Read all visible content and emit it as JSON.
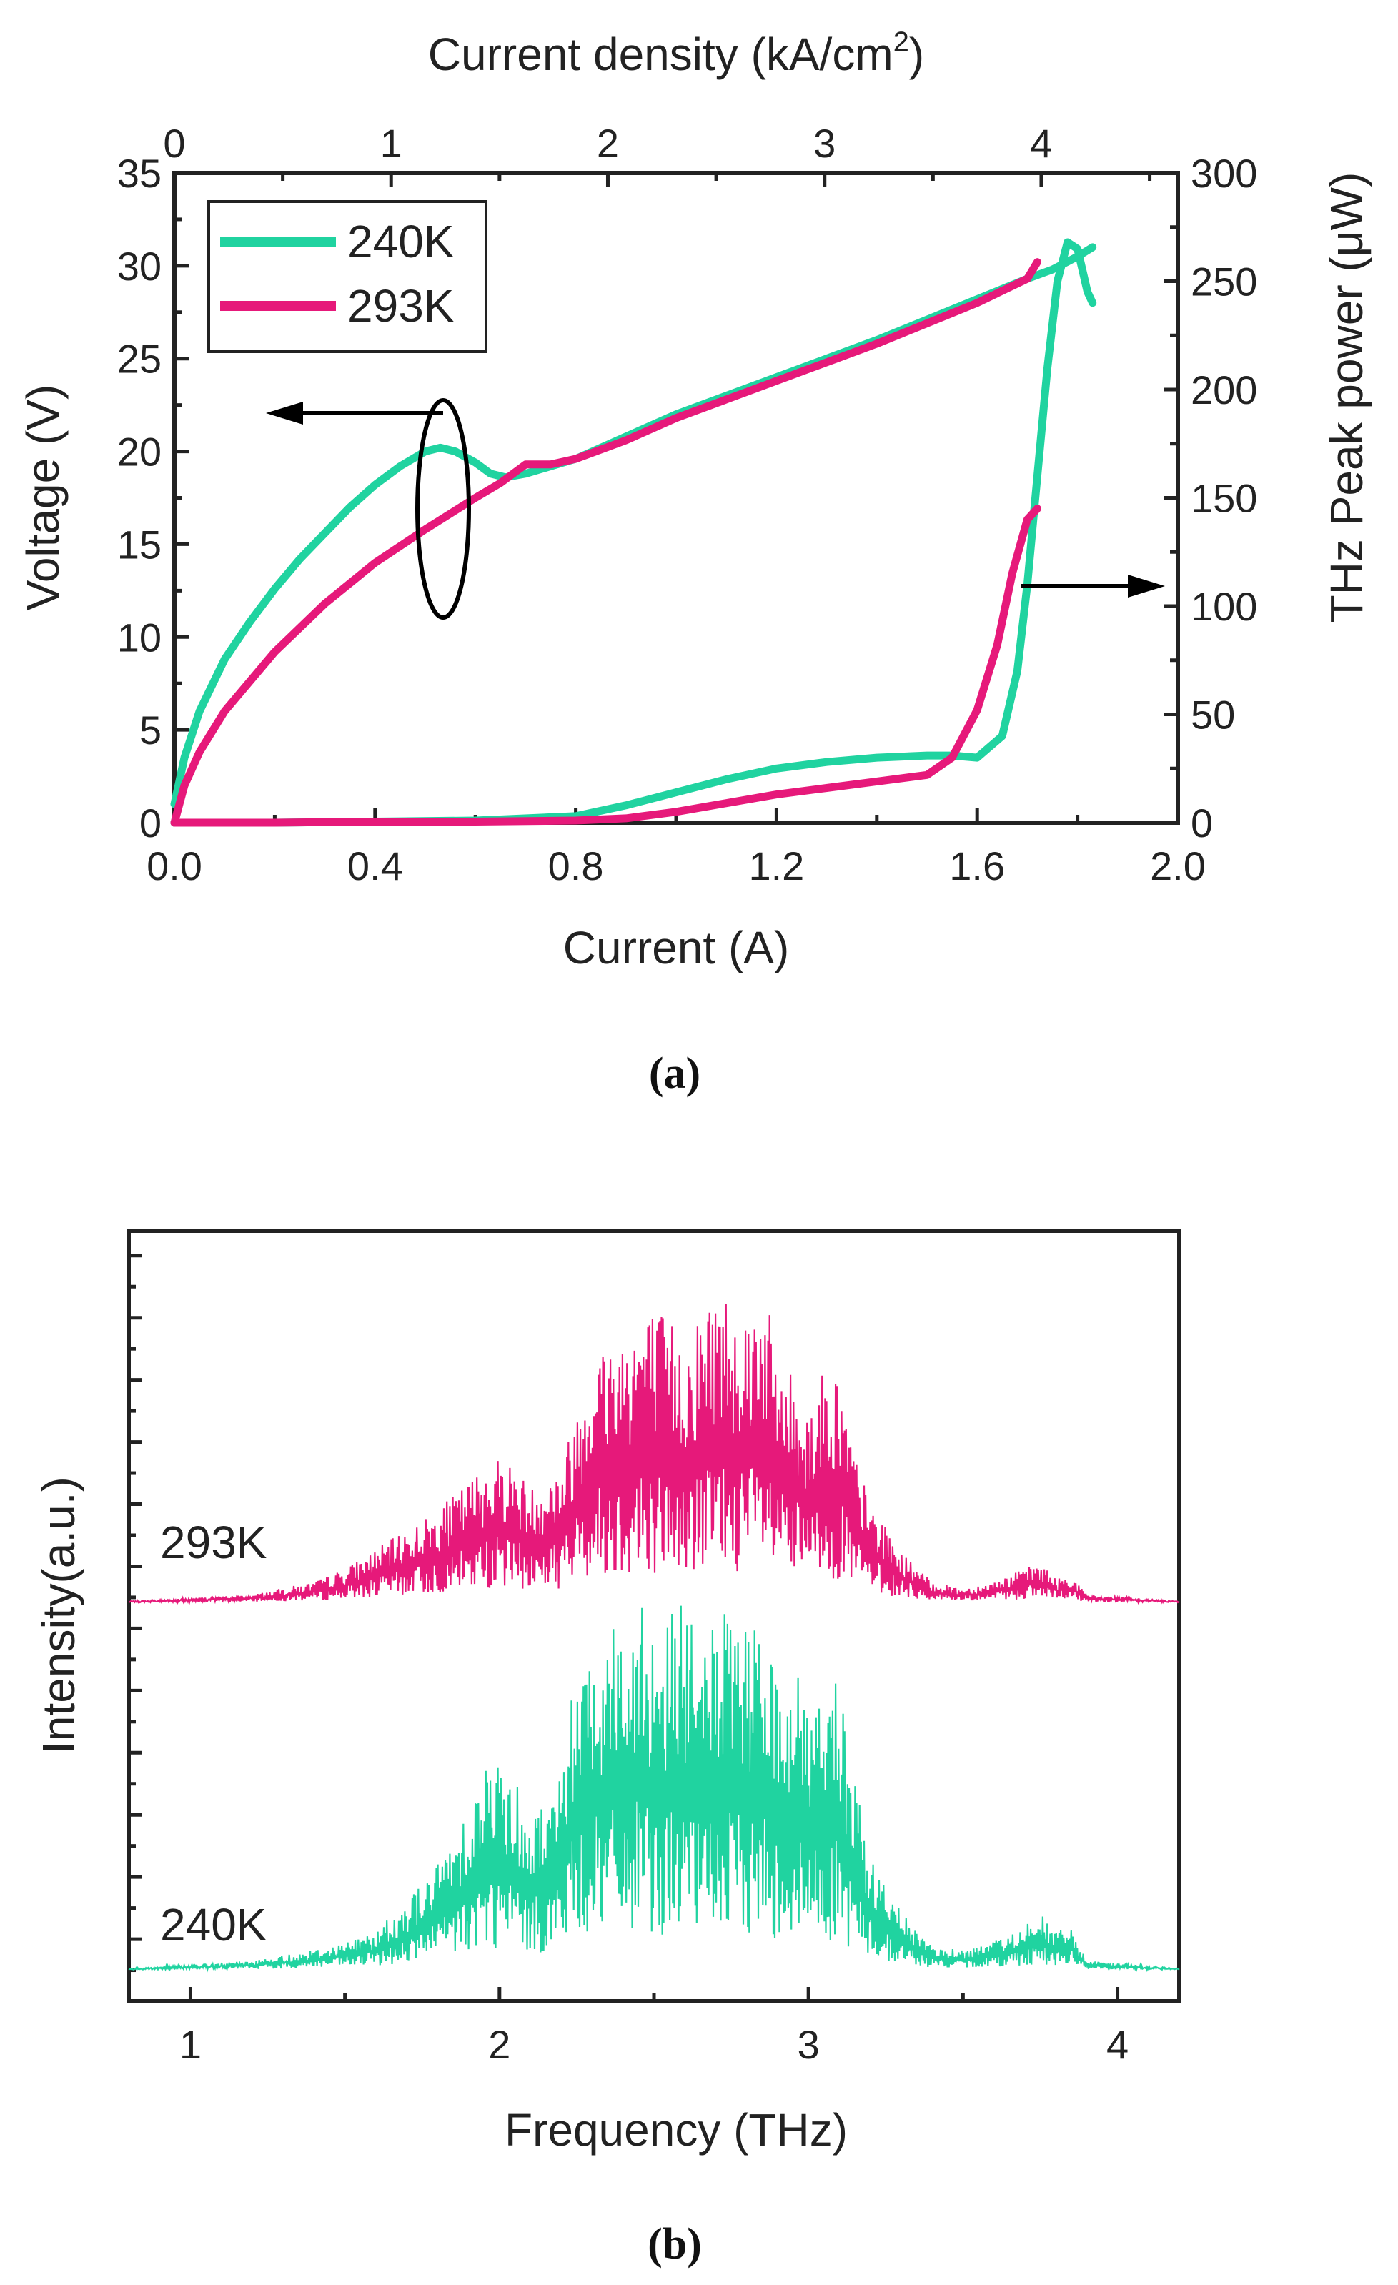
{
  "colors": {
    "green": "#20D3A0",
    "pink": "#E6197A",
    "axis": "#222222"
  },
  "chart_data": [
    {
      "type": "line",
      "panel": "(a)",
      "caption": "(a)",
      "title": "",
      "xlabel": "Current (A)",
      "x2label_prefix": "Current density (kA/cm",
      "x2label_sup": "2",
      "x2label_suffix": ")",
      "ylabel": "Voltage (V)",
      "y2label": "THz Peak power (μW)",
      "xlim": [
        0.0,
        2.0
      ],
      "ylim": [
        0,
        35
      ],
      "y2lim": [
        0,
        300
      ],
      "x2lim": [
        0,
        4.63
      ],
      "xticks": [
        "0.0",
        "0.4",
        "0.8",
        "1.2",
        "1.6",
        "2.0"
      ],
      "yticks": [
        "0",
        "5",
        "10",
        "15",
        "20",
        "25",
        "30",
        "35"
      ],
      "y2ticks": [
        "0",
        "50",
        "100",
        "150",
        "200",
        "250",
        "300"
      ],
      "x2ticks": [
        "0",
        "1",
        "2",
        "3",
        "4"
      ],
      "legend": {
        "position": "top-left",
        "entries": [
          "240K",
          "293K"
        ]
      },
      "annotations": [
        "ellipse around voltage curves with arrow pointing to left axis",
        "arrow from power curves pointing to right axis"
      ],
      "series": [
        {
          "name": "240K",
          "kind": "voltage",
          "axis": "left",
          "color": "green",
          "x": [
            0.0,
            0.02,
            0.05,
            0.1,
            0.15,
            0.2,
            0.25,
            0.3,
            0.35,
            0.4,
            0.45,
            0.5,
            0.53,
            0.56,
            0.6,
            0.63,
            0.66,
            0.7,
            0.8,
            0.9,
            1.0,
            1.1,
            1.2,
            1.3,
            1.4,
            1.5,
            1.6,
            1.7,
            1.75,
            1.8,
            1.83
          ],
          "y": [
            1.0,
            3.5,
            6.0,
            8.8,
            10.8,
            12.6,
            14.2,
            15.6,
            17.0,
            18.2,
            19.2,
            20.0,
            20.2,
            20.0,
            19.4,
            18.8,
            18.6,
            18.8,
            19.6,
            20.8,
            22.0,
            23.0,
            24.0,
            25.0,
            26.0,
            27.1,
            28.2,
            29.3,
            29.8,
            30.5,
            31.0
          ]
        },
        {
          "name": "293K",
          "kind": "voltage",
          "axis": "left",
          "color": "pink",
          "x": [
            0.0,
            0.02,
            0.05,
            0.1,
            0.2,
            0.3,
            0.4,
            0.5,
            0.6,
            0.65,
            0.7,
            0.75,
            0.8,
            0.9,
            1.0,
            1.1,
            1.2,
            1.3,
            1.4,
            1.5,
            1.6,
            1.7,
            1.72
          ],
          "y": [
            0.0,
            2.0,
            3.8,
            6.0,
            9.2,
            11.8,
            14.0,
            15.8,
            17.5,
            18.3,
            19.3,
            19.3,
            19.6,
            20.6,
            21.8,
            22.8,
            23.8,
            24.8,
            25.8,
            26.9,
            28.0,
            29.3,
            30.2
          ]
        },
        {
          "name": "240K",
          "kind": "power",
          "axis": "right",
          "color": "green",
          "x": [
            0.0,
            0.2,
            0.4,
            0.6,
            0.8,
            0.9,
            1.0,
            1.1,
            1.2,
            1.3,
            1.4,
            1.5,
            1.55,
            1.6,
            1.65,
            1.68,
            1.7,
            1.72,
            1.74,
            1.76,
            1.78,
            1.8,
            1.82,
            1.83
          ],
          "y": [
            0,
            0,
            0.5,
            1,
            3,
            8,
            14,
            20,
            25,
            28,
            30,
            31,
            31,
            30,
            40,
            70,
            110,
            160,
            210,
            250,
            268,
            265,
            245,
            240
          ]
        },
        {
          "name": "293K",
          "kind": "power",
          "axis": "right",
          "color": "pink",
          "x": [
            0.0,
            0.2,
            0.4,
            0.6,
            0.8,
            0.9,
            1.0,
            1.1,
            1.2,
            1.3,
            1.4,
            1.5,
            1.55,
            1.6,
            1.64,
            1.67,
            1.7,
            1.72
          ],
          "y": [
            0,
            0,
            0.5,
            0.5,
            1,
            2,
            5,
            9,
            13,
            16,
            19,
            22,
            30,
            52,
            82,
            115,
            140,
            145
          ]
        }
      ]
    },
    {
      "type": "line",
      "panel": "(b)",
      "caption": "(b)",
      "title": "",
      "xlabel": "Frequency (THz)",
      "ylabel": "Intensity(a.u.)",
      "xlim": [
        0.8,
        4.2
      ],
      "xticks": [
        "1",
        "2",
        "3",
        "4"
      ],
      "yunits": "arbitrary, normalized 0-1 per spectrum",
      "spectra": [
        {
          "name": "293K",
          "label": "293K",
          "color": "pink",
          "envelope_x": [
            0.8,
            1.2,
            1.4,
            1.5,
            1.6,
            1.7,
            1.8,
            1.9,
            1.95,
            2.0,
            2.05,
            2.1,
            2.2,
            2.25,
            2.3,
            2.4,
            2.45,
            2.5,
            2.55,
            2.6,
            2.65,
            2.7,
            2.75,
            2.8,
            2.85,
            2.9,
            2.95,
            3.0,
            3.05,
            3.1,
            3.15,
            3.2,
            3.3,
            3.4,
            3.5,
            3.6,
            3.7,
            3.75,
            3.8,
            3.85,
            3.9,
            4.2
          ],
          "envelope_y": [
            0.0,
            0.02,
            0.06,
            0.1,
            0.16,
            0.22,
            0.28,
            0.37,
            0.42,
            0.45,
            0.42,
            0.35,
            0.42,
            0.6,
            0.78,
            0.85,
            0.9,
            0.9,
            0.88,
            0.8,
            0.9,
            0.98,
            0.95,
            0.9,
            1.0,
            0.75,
            0.7,
            0.6,
            0.72,
            0.7,
            0.45,
            0.3,
            0.15,
            0.06,
            0.04,
            0.06,
            0.1,
            0.12,
            0.07,
            0.08,
            0.02,
            0.0
          ]
        },
        {
          "name": "240K",
          "label": "240K",
          "color": "green",
          "envelope_x": [
            0.8,
            1.2,
            1.4,
            1.5,
            1.6,
            1.7,
            1.8,
            1.9,
            1.95,
            2.0,
            2.05,
            2.1,
            2.2,
            2.25,
            2.3,
            2.4,
            2.45,
            2.5,
            2.55,
            2.6,
            2.65,
            2.7,
            2.75,
            2.8,
            2.85,
            2.9,
            2.95,
            3.0,
            3.05,
            3.1,
            3.15,
            3.2,
            3.3,
            3.4,
            3.5,
            3.6,
            3.7,
            3.75,
            3.8,
            3.85,
            3.9,
            4.2
          ],
          "envelope_y": [
            0.0,
            0.02,
            0.05,
            0.07,
            0.1,
            0.18,
            0.28,
            0.45,
            0.55,
            0.56,
            0.52,
            0.4,
            0.55,
            0.85,
            0.9,
            0.96,
            1.0,
            0.92,
            0.95,
            0.98,
            0.85,
            0.98,
            0.92,
            0.9,
            0.95,
            0.78,
            0.85,
            0.7,
            0.8,
            0.75,
            0.5,
            0.3,
            0.15,
            0.06,
            0.05,
            0.07,
            0.12,
            0.15,
            0.1,
            0.11,
            0.02,
            0.0
          ]
        }
      ]
    }
  ]
}
